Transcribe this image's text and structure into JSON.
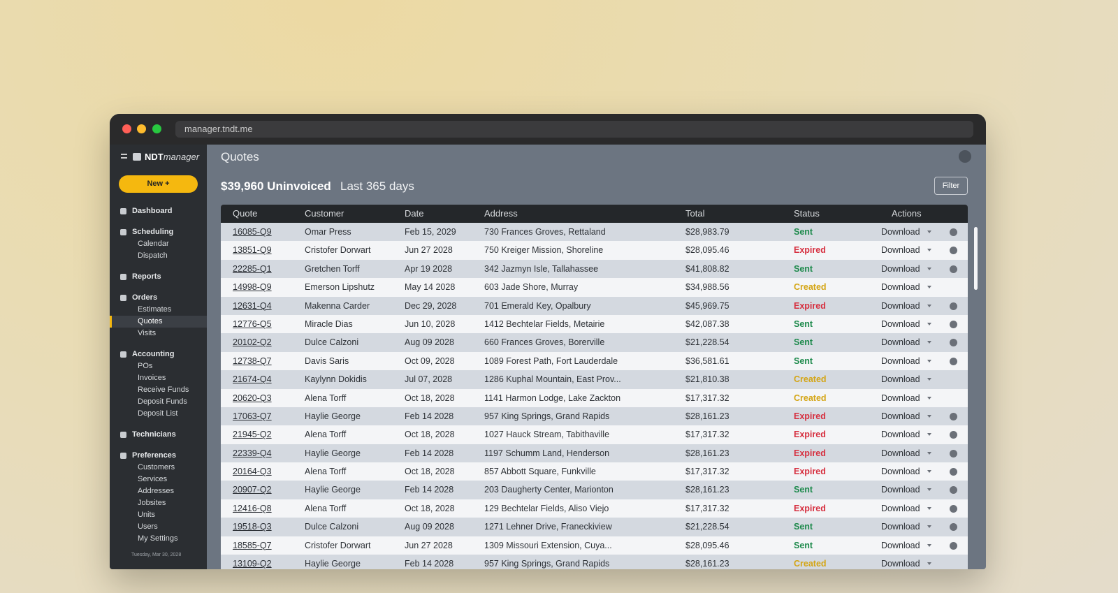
{
  "browser": {
    "url": "manager.tndt.me"
  },
  "sidebar": {
    "logo_bold": "NDT",
    "logo_italic": "manager",
    "new_button": "New +",
    "nav": [
      {
        "label": "Dashboard",
        "items": []
      },
      {
        "label": "Scheduling",
        "items": [
          "Calendar",
          "Dispatch"
        ]
      },
      {
        "label": "Reports",
        "items": []
      },
      {
        "label": "Orders",
        "items": [
          "Estimates",
          "Quotes",
          "Visits"
        ]
      },
      {
        "label": "Accounting",
        "items": [
          "POs",
          "Invoices",
          "Receive Funds",
          "Deposit Funds",
          "Deposit List"
        ]
      },
      {
        "label": "Technicians",
        "items": []
      },
      {
        "label": "Preferences",
        "items": [
          "Customers",
          "Services",
          "Addresses",
          "Jobsites",
          "Units",
          "Users",
          "My Settings"
        ]
      }
    ],
    "active_item": "Quotes",
    "footer_date": "Tuesday, Mar 30, 2028"
  },
  "header": {
    "title": "Quotes",
    "summary": "$39,960 Uninvoiced",
    "period": "Last 365 days",
    "filter_button": "Filter"
  },
  "table": {
    "columns": [
      "Quote",
      "Customer",
      "Date",
      "Address",
      "Total",
      "Status",
      "Actions"
    ],
    "status_colors": {
      "Sent": "#1e8a4c",
      "Expired": "#d62f3f",
      "Created": "#d4a514"
    },
    "rows": [
      [
        "16085-Q9",
        "Omar Press",
        "Feb 15, 2029",
        "730 Frances Groves, Rettaland",
        "$28,983.79",
        "Sent",
        "Download"
      ],
      [
        "13851-Q9",
        "Cristofer Dorwart",
        "Jun 27 2028",
        "750 Kreiger Mission, Shoreline",
        "$28,095.46",
        "Expired",
        "Download"
      ],
      [
        "22285-Q1",
        "Gretchen Torff",
        "Apr 19 2028",
        "342 Jazmyn Isle, Tallahassee",
        "$41,808.82",
        "Sent",
        "Download"
      ],
      [
        "14998-Q9",
        "Emerson Lipshutz",
        "May 14 2028",
        "603 Jade Shore, Murray",
        "$34,988.56",
        "Created",
        "Download"
      ],
      [
        "12631-Q4",
        "Makenna Carder",
        "Dec 29, 2028",
        "701 Emerald Key, Opalbury",
        "$45,969.75",
        "Expired",
        "Download"
      ],
      [
        "12776-Q5",
        "Miracle Dias",
        "Jun 10, 2028",
        "1412 Bechtelar Fields, Metairie",
        "$42,087.38",
        "Sent",
        "Download"
      ],
      [
        "20102-Q2",
        "Dulce Calzoni",
        "Aug 09 2028",
        "660 Frances Groves, Borerville",
        "$21,228.54",
        "Sent",
        "Download"
      ],
      [
        "12738-Q7",
        "Davis Saris",
        "Oct 09, 2028",
        "1089 Forest Path, Fort Lauderdale",
        "$36,581.61",
        "Sent",
        "Download"
      ],
      [
        "21674-Q4",
        "Kaylynn Dokidis",
        "Jul 07, 2028",
        "1286 Kuphal Mountain, East Prov...",
        "$21,810.38",
        "Created",
        "Download"
      ],
      [
        "20620-Q3",
        "Alena Torff",
        "Oct 18, 2028",
        "1141 Harmon Lodge, Lake Zackton",
        "$17,317.32",
        "Created",
        "Download"
      ],
      [
        "17063-Q7",
        "Haylie George",
        "Feb 14 2028",
        "957 King Springs, Grand Rapids",
        "$28,161.23",
        "Expired",
        "Download"
      ],
      [
        "21945-Q2",
        "Alena Torff",
        "Oct 18, 2028",
        "1027 Hauck Stream, Tabithaville",
        "$17,317.32",
        "Expired",
        "Download"
      ],
      [
        "22339-Q4",
        "Haylie George",
        "Feb 14 2028",
        "1197 Schumm Land, Henderson",
        "$28,161.23",
        "Expired",
        "Download"
      ],
      [
        "20164-Q3",
        "Alena Torff",
        "Oct 18, 2028",
        "857 Abbott Square, Funkville",
        "$17,317.32",
        "Expired",
        "Download"
      ],
      [
        "20907-Q2",
        "Haylie George",
        "Feb 14 2028",
        "203 Daugherty Center, Marionton",
        "$28,161.23",
        "Sent",
        "Download"
      ],
      [
        "12416-Q8",
        "Alena Torff",
        "Oct 18, 2028",
        "129 Bechtelar Fields, Aliso Viejo",
        "$17,317.32",
        "Expired",
        "Download"
      ],
      [
        "19518-Q3",
        "Dulce Calzoni",
        "Aug 09 2028",
        "1271 Lehner Drive, Franeckiview",
        "$21,228.54",
        "Sent",
        "Download"
      ],
      [
        "18585-Q7",
        "Cristofer Dorwart",
        "Jun 27 2028",
        "1309 Missouri Extension, Cuya...",
        "$28,095.46",
        "Sent",
        "Download"
      ],
      [
        "13109-Q2",
        "Haylie George",
        "Feb 14 2028",
        "957 King Springs, Grand Rapids",
        "$28,161.23",
        "Created",
        "Download"
      ]
    ],
    "info_icon": [
      true,
      true,
      true,
      false,
      true,
      true,
      true,
      true,
      false,
      false,
      true,
      true,
      true,
      true,
      true,
      true,
      true,
      true,
      false
    ]
  }
}
